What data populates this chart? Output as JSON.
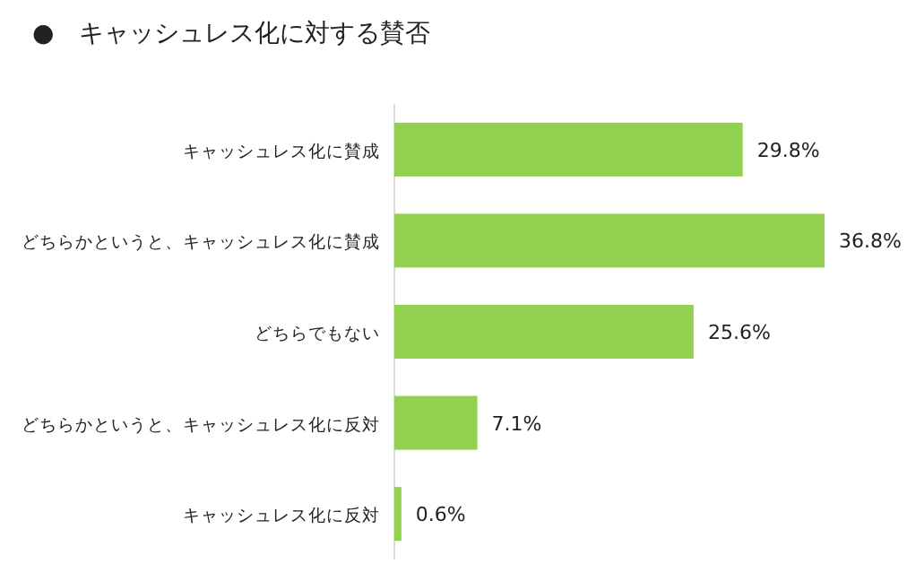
{
  "chart_data": {
    "type": "bar",
    "orientation": "horizontal",
    "title": "●　キャッシュレス化に対する賛否",
    "categories": [
      "キャッシュレス化に賛成",
      "どちらかというと、キャッシュレス化に賛成",
      "どちらでもない",
      "どちらかというと、キャッシュレス化に反対",
      "キャッシュレス化に反対"
    ],
    "values": [
      29.8,
      36.8,
      25.6,
      7.1,
      0.6
    ],
    "value_labels": [
      "29.8%",
      "36.8%",
      "25.6%",
      "7.1%",
      "0.6%"
    ],
    "color": "#92d050"
  }
}
